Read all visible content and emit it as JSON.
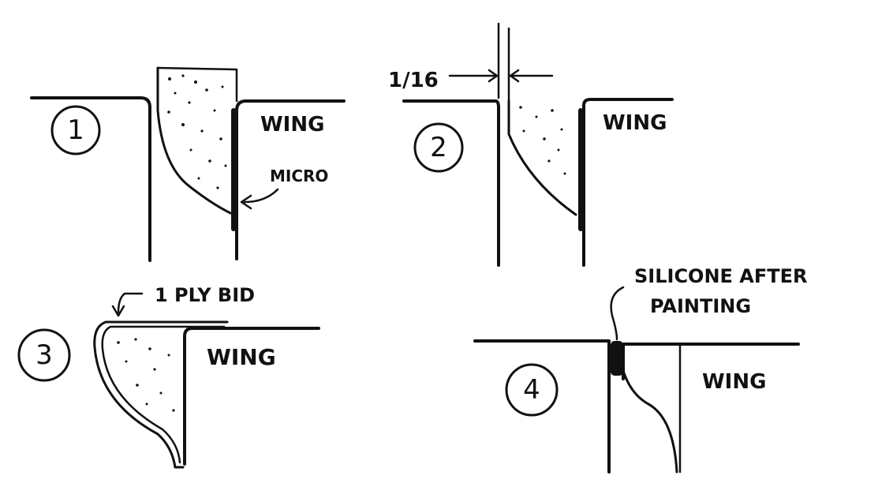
{
  "details": [
    {
      "number": "1",
      "wing": "WING",
      "callout": "MICRO"
    },
    {
      "number": "2",
      "wing": "WING",
      "dimension": "1/16"
    },
    {
      "number": "3",
      "wing": "WING",
      "callout": "1 PLY BID"
    },
    {
      "number": "4",
      "wing": "WING",
      "callout_line1": "SILICONE AFTER",
      "callout_line2": "PAINTING"
    }
  ],
  "colors": {
    "ink": "#111111",
    "paper": "#ffffff"
  }
}
